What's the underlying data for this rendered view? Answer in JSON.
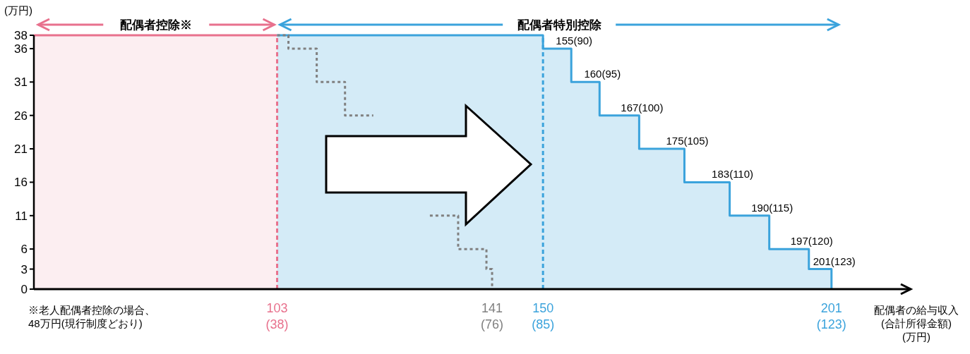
{
  "chart_data": {
    "type": "step",
    "ylabel": "(万円)",
    "xlabel": "配偶者の給与収入\n(合計所得金額)\n(万円)",
    "xlim": [
      60,
      215
    ],
    "ylim": [
      0,
      38
    ],
    "xticks": [
      103,
      141,
      150,
      201
    ],
    "yticks": [
      0,
      3,
      6,
      11,
      16,
      21,
      26,
      31,
      36,
      38
    ],
    "grid": false,
    "series": [
      {
        "type": "area",
        "color": "#e8718d",
        "x": [
          60,
          103
        ],
        "values": [
          38,
          38
        ]
      },
      {
        "type": "area",
        "color": "#3ba3dc",
        "x": [
          103,
          150,
          150,
          155,
          155,
          160,
          160,
          167,
          167,
          175,
          175,
          183,
          183,
          190,
          190,
          197,
          197,
          201,
          201
        ],
        "values": [
          38,
          38,
          36,
          36,
          31,
          31,
          26,
          26,
          21,
          21,
          16,
          16,
          11,
          11,
          6,
          6,
          3,
          3,
          0
        ]
      },
      {
        "color": "#808080",
        "line_style": "dotted",
        "x": [
          103,
          105,
          110,
          115,
          120,
          125,
          130,
          135,
          140,
          141
        ],
        "values": [
          38,
          36,
          31,
          26,
          null,
          null,
          11,
          6,
          3,
          0
        ]
      }
    ],
    "ref_lines": [
      {
        "axis": "x",
        "value": 103,
        "color": "#e8718d",
        "line_style": "dashed"
      },
      {
        "axis": "x",
        "value": 150,
        "color": "#3ba3dc",
        "line_style": "dashed"
      }
    ],
    "annotations": [
      "配偶者控除※",
      "配偶者特別控除",
      "(38)",
      "(76)",
      "(85)",
      "(123)",
      {
        "text": "155(90)",
        "x": 155,
        "y": 36
      },
      {
        "text": "160(95)",
        "x": 160,
        "y": 31
      },
      {
        "text": "167(100)",
        "x": 167,
        "y": 26
      },
      {
        "text": "175(105)",
        "x": 175,
        "y": 21
      },
      {
        "text": "183(110)",
        "x": 183,
        "y": 16
      },
      {
        "text": "190(115)",
        "x": 190,
        "y": 11
      },
      {
        "text": "197(120)",
        "x": 197,
        "y": 6
      },
      {
        "text": "201(123)",
        "x": 201,
        "y": 3
      },
      "※老人配偶者控除の場合、\n48万円(現行制度どおり)"
    ]
  }
}
